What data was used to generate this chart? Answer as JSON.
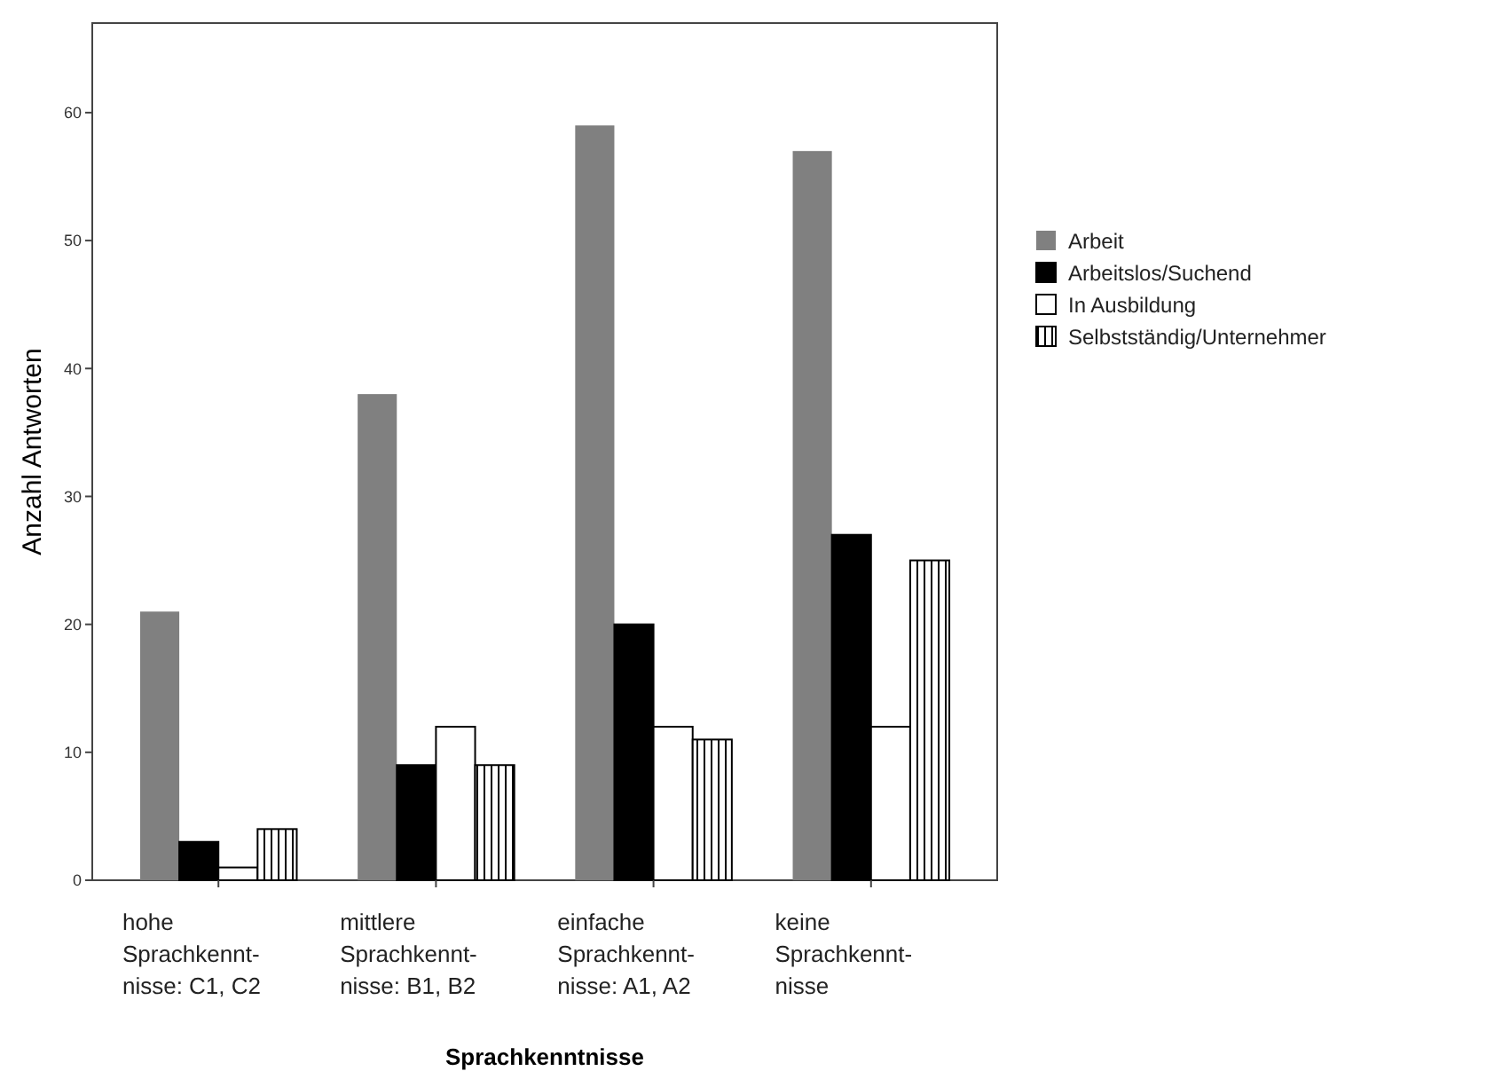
{
  "chart_data": {
    "type": "bar",
    "xlabel": "Sprachkenntnisse",
    "ylabel": "Anzahl Antworten",
    "categories": [
      "hohe\nSprachkennt-\nnisse: C1, C2",
      "mittlere\nSprachkennt-\nnisse: B1, B2",
      "einfache\nSprachkennt-\nnisse: A1, A2",
      "keine\nSprachkennt-\nnisse"
    ],
    "series": [
      {
        "name": "Arbeit",
        "color": "#808080",
        "values": [
          21,
          38,
          59,
          57
        ]
      },
      {
        "name": "Arbeitslos/Suchend",
        "color": "#000000",
        "values": [
          3,
          9,
          20,
          27
        ]
      },
      {
        "name": "In Ausbildung",
        "color": "#ffffff",
        "values": [
          1,
          12,
          12,
          12
        ]
      },
      {
        "name": "Selbstständig/Unternehmer",
        "color": "#000000",
        "values": [
          4,
          9,
          11,
          25
        ]
      }
    ],
    "ylim": [
      0,
      67
    ],
    "yticks": [
      0,
      10,
      20,
      30,
      40,
      50,
      60
    ],
    "grid": false,
    "legend": "right"
  }
}
